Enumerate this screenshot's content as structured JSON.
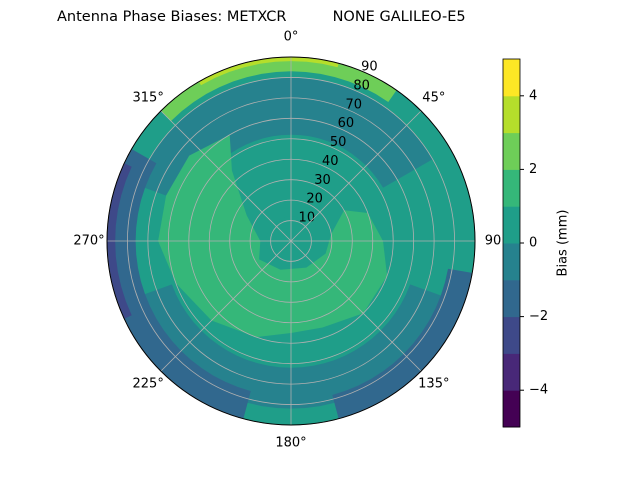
{
  "chart_data": {
    "type": "polar_contour",
    "title": "Antenna Phase Biases: METXCR          NONE GALILEO-E5",
    "rlim": [
      0,
      90
    ],
    "rticks": [
      10,
      20,
      30,
      40,
      50,
      60,
      70,
      80,
      90
    ],
    "thetaticks": [
      {
        "value": 0,
        "label": "0°"
      },
      {
        "value": 45,
        "label": "45°"
      },
      {
        "value": 90,
        "label": "90"
      },
      {
        "value": 135,
        "label": "135°"
      },
      {
        "value": 180,
        "label": "180°"
      },
      {
        "value": 225,
        "label": "225°"
      },
      {
        "value": 270,
        "label": "270°"
      },
      {
        "value": 315,
        "label": "315°"
      }
    ],
    "grid": true,
    "levels": [
      -5,
      -4,
      -3,
      -2,
      -1,
      0,
      1,
      2,
      3,
      4,
      5
    ],
    "colors": [
      "#440154",
      "#482878",
      "#3e4989",
      "#31688e",
      "#26828e",
      "#1f9e89",
      "#35b779",
      "#6ece58",
      "#b5de2b",
      "#fde725"
    ],
    "colorbar_label": "Bias (mm)",
    "colorbar_ticks": [
      {
        "value": -4,
        "label": "−4"
      },
      {
        "value": -2,
        "label": "−2"
      },
      0,
      2,
      4
    ]
  }
}
